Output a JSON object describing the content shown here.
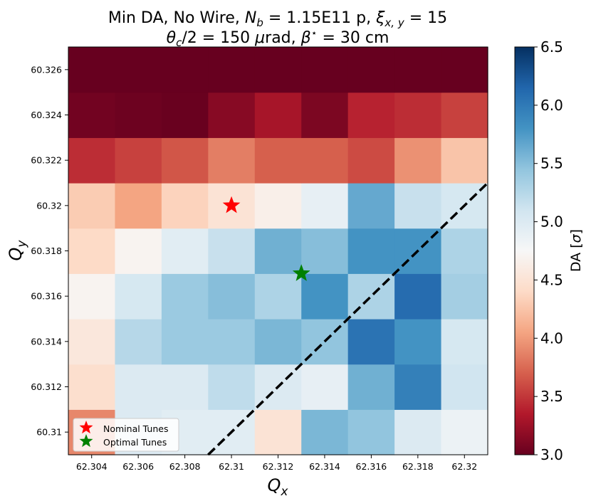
{
  "chart_data": {
    "type": "heatmap",
    "title_line1": {
      "prefix": "Min DA, No Wire, ",
      "nb_sym": "N",
      "nb_sub": "b",
      "nb_val": " = 1.15E11 p, ",
      "xi_sym": "ξ",
      "xi_sub": "x, y",
      "xi_val": " = 15"
    },
    "title_line2": {
      "theta_sym": "θ",
      "theta_sub": "c",
      "theta_val": "/2 = 150 ",
      "mu_sym": "μ",
      "rad": "rad, ",
      "beta_sym": "β",
      "beta_sup": "⋆",
      "beta_val": " = 30 cm"
    },
    "xlabel": {
      "sym": "Q",
      "sub": "x"
    },
    "ylabel": {
      "sym": "Q",
      "sub": "y"
    },
    "x_ticks": [
      "62.304",
      "62.306",
      "62.308",
      "62.31",
      "62.312",
      "62.314",
      "62.316",
      "62.318",
      "62.32"
    ],
    "y_ticks": [
      "60.31",
      "60.312",
      "60.314",
      "60.316",
      "60.318",
      "60.32",
      "60.322",
      "60.324",
      "60.326"
    ],
    "x_range": [
      62.303,
      62.321
    ],
    "y_range": [
      60.309,
      60.327
    ],
    "x_centers": [
      62.304,
      62.306,
      62.308,
      62.31,
      62.312,
      62.314,
      62.316,
      62.318,
      62.32
    ],
    "y_centers": [
      60.31,
      60.312,
      60.314,
      60.316,
      60.318,
      60.32,
      60.322,
      60.324,
      60.326
    ],
    "values": [
      [
        3.9,
        5.0,
        4.95,
        4.95,
        4.5,
        5.55,
        5.45,
        5.0,
        4.85
      ],
      [
        4.45,
        5.0,
        5.0,
        5.2,
        5.0,
        4.9,
        5.6,
        5.95,
        5.1
      ],
      [
        4.55,
        5.25,
        5.4,
        5.4,
        5.55,
        5.45,
        6.05,
        5.8,
        5.05
      ],
      [
        4.7,
        5.05,
        5.4,
        5.5,
        5.3,
        5.8,
        5.3,
        6.1,
        5.35
      ],
      [
        4.4,
        4.7,
        4.95,
        5.15,
        5.6,
        5.5,
        5.8,
        5.8,
        5.3
      ],
      [
        4.3,
        4.05,
        4.35,
        4.5,
        4.65,
        4.9,
        5.65,
        5.15,
        5.05
      ],
      [
        3.45,
        3.55,
        3.65,
        3.85,
        3.7,
        3.7,
        3.6,
        3.95,
        4.25
      ],
      [
        3.05,
        3.03,
        3.01,
        3.15,
        3.3,
        3.1,
        3.4,
        3.45,
        3.55
      ],
      [
        3.0,
        3.0,
        3.0,
        3.0,
        3.0,
        3.0,
        3.0,
        3.0,
        3.0
      ]
    ],
    "markers": [
      {
        "label": "Nominal Tunes",
        "x": 62.31,
        "y": 60.32,
        "color": "#ff0000"
      },
      {
        "label": "Optimal Tunes",
        "x": 62.313,
        "y": 60.317,
        "color": "#008000"
      }
    ],
    "diagonal_line": {
      "x": [
        62.309,
        62.321
      ],
      "y": [
        60.309,
        60.321
      ],
      "color": "#000000",
      "style": "dashed"
    },
    "colorbar": {
      "label": "DA",
      "unit_sym": "σ",
      "vmin": 3.0,
      "vmax": 6.5,
      "ticks": [
        "3.0",
        "3.5",
        "4.0",
        "4.5",
        "5.0",
        "5.5",
        "6.0",
        "6.5"
      ],
      "tick_values": [
        3.0,
        3.5,
        4.0,
        4.5,
        5.0,
        5.5,
        6.0,
        6.5
      ],
      "cmap": "RdBu"
    },
    "legend_position": "lower-left"
  }
}
